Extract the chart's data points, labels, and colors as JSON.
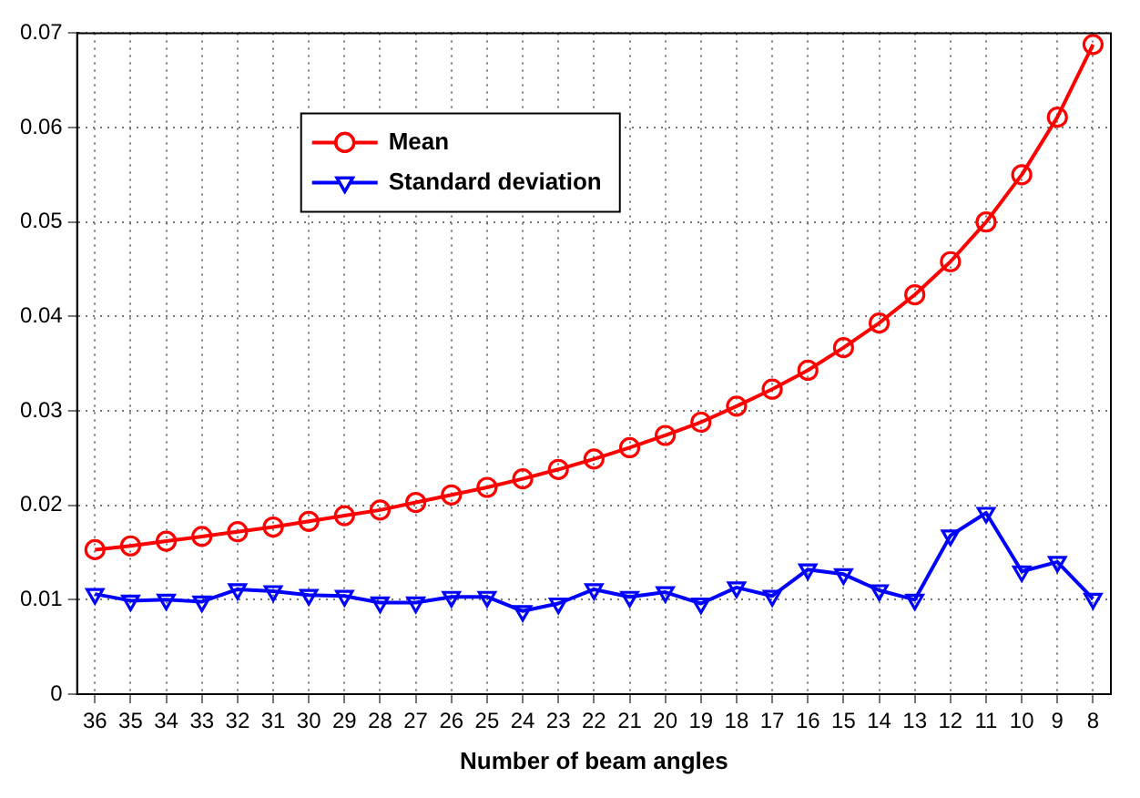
{
  "chart_data": {
    "type": "line",
    "xlabel": "Number of beam angles",
    "categories": [
      "36",
      "35",
      "34",
      "33",
      "32",
      "31",
      "30",
      "29",
      "28",
      "27",
      "26",
      "25",
      "24",
      "23",
      "22",
      "21",
      "20",
      "19",
      "18",
      "17",
      "16",
      "15",
      "14",
      "13",
      "12",
      "11",
      "10",
      "9",
      "8"
    ],
    "series": [
      {
        "name": "Mean",
        "color": "#ff0000",
        "marker": "circle",
        "values": [
          0.0153,
          0.0157,
          0.0162,
          0.0167,
          0.0172,
          0.0177,
          0.0183,
          0.0189,
          0.0195,
          0.0203,
          0.0211,
          0.0219,
          0.0228,
          0.0238,
          0.0249,
          0.0261,
          0.0274,
          0.0288,
          0.0305,
          0.0323,
          0.0343,
          0.0367,
          0.0393,
          0.0423,
          0.0458,
          0.05,
          0.055,
          0.0611,
          0.0688
        ]
      },
      {
        "name": "Standard deviation",
        "color": "#0000ff",
        "marker": "triangle",
        "values": [
          0.0106,
          0.0099,
          0.01,
          0.0098,
          0.0111,
          0.0109,
          0.0105,
          0.0104,
          0.0097,
          0.0097,
          0.0103,
          0.0103,
          0.0088,
          0.0096,
          0.0111,
          0.0103,
          0.0108,
          0.0096,
          0.0113,
          0.0104,
          0.0132,
          0.0127,
          0.011,
          0.01,
          0.0168,
          0.0192,
          0.013,
          0.014,
          0.0101
        ]
      }
    ],
    "ylim": [
      0,
      0.07
    ],
    "yticks": [
      0,
      0.01,
      0.02,
      0.03,
      0.04,
      0.05,
      0.06,
      0.07
    ],
    "grid": true,
    "legend": "top left",
    "line_style": "solid"
  }
}
